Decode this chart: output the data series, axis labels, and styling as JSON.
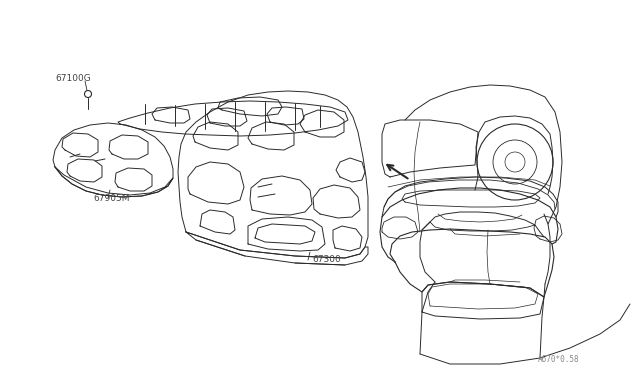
{
  "bg_color": "#ffffff",
  "line_color": "#2a2a2a",
  "label_color": "#444444",
  "diagram_code": "A670*0.58",
  "label_67300": "67300",
  "label_67905M": "67905M",
  "label_67100G": "67100G"
}
